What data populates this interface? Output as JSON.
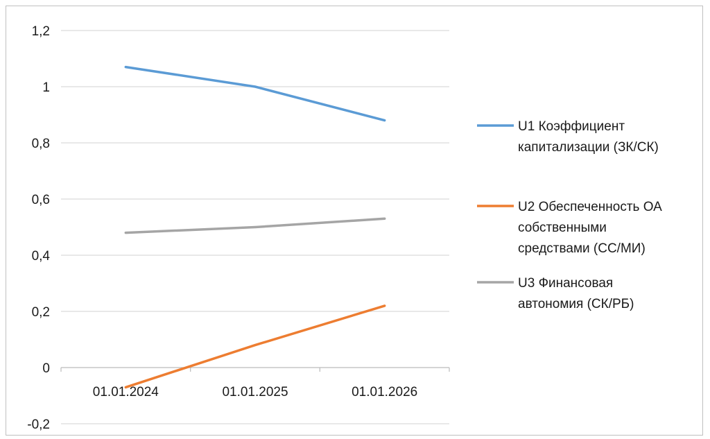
{
  "chart_data": {
    "type": "line",
    "categories": [
      "01.01.2024",
      "01.01.2025",
      "01.01.2026"
    ],
    "y_ticks": [
      "-0,2",
      "0",
      "0,2",
      "0,4",
      "0,6",
      "0,8",
      "1",
      "1,2"
    ],
    "ylim": [
      -0.2,
      1.2
    ],
    "grid": true,
    "legend_position": "right",
    "series": [
      {
        "name": "U1 Коэффициент капитализации (ЗК/СК)",
        "legend_lines": [
          "U1 Коэффициент",
          "капитализации (ЗК/СК)"
        ],
        "color": "#5b9bd5",
        "values": [
          1.07,
          1.0,
          0.88
        ]
      },
      {
        "name": "U2 Обеспеченность ОА собственными средствами (СС/МИ)",
        "legend_lines": [
          "U2 Обеспеченность ОА",
          "собственными",
          "средствами (СС/МИ)"
        ],
        "color": "#ed7d31",
        "values": [
          -0.07,
          0.08,
          0.22
        ]
      },
      {
        "name": "U3 Финансовая автономия (СК/РБ)",
        "legend_lines": [
          "U3 Финансовая",
          "автономия (СК/РБ)"
        ],
        "color": "#a5a5a5",
        "values": [
          0.48,
          0.5,
          0.53
        ]
      }
    ]
  }
}
